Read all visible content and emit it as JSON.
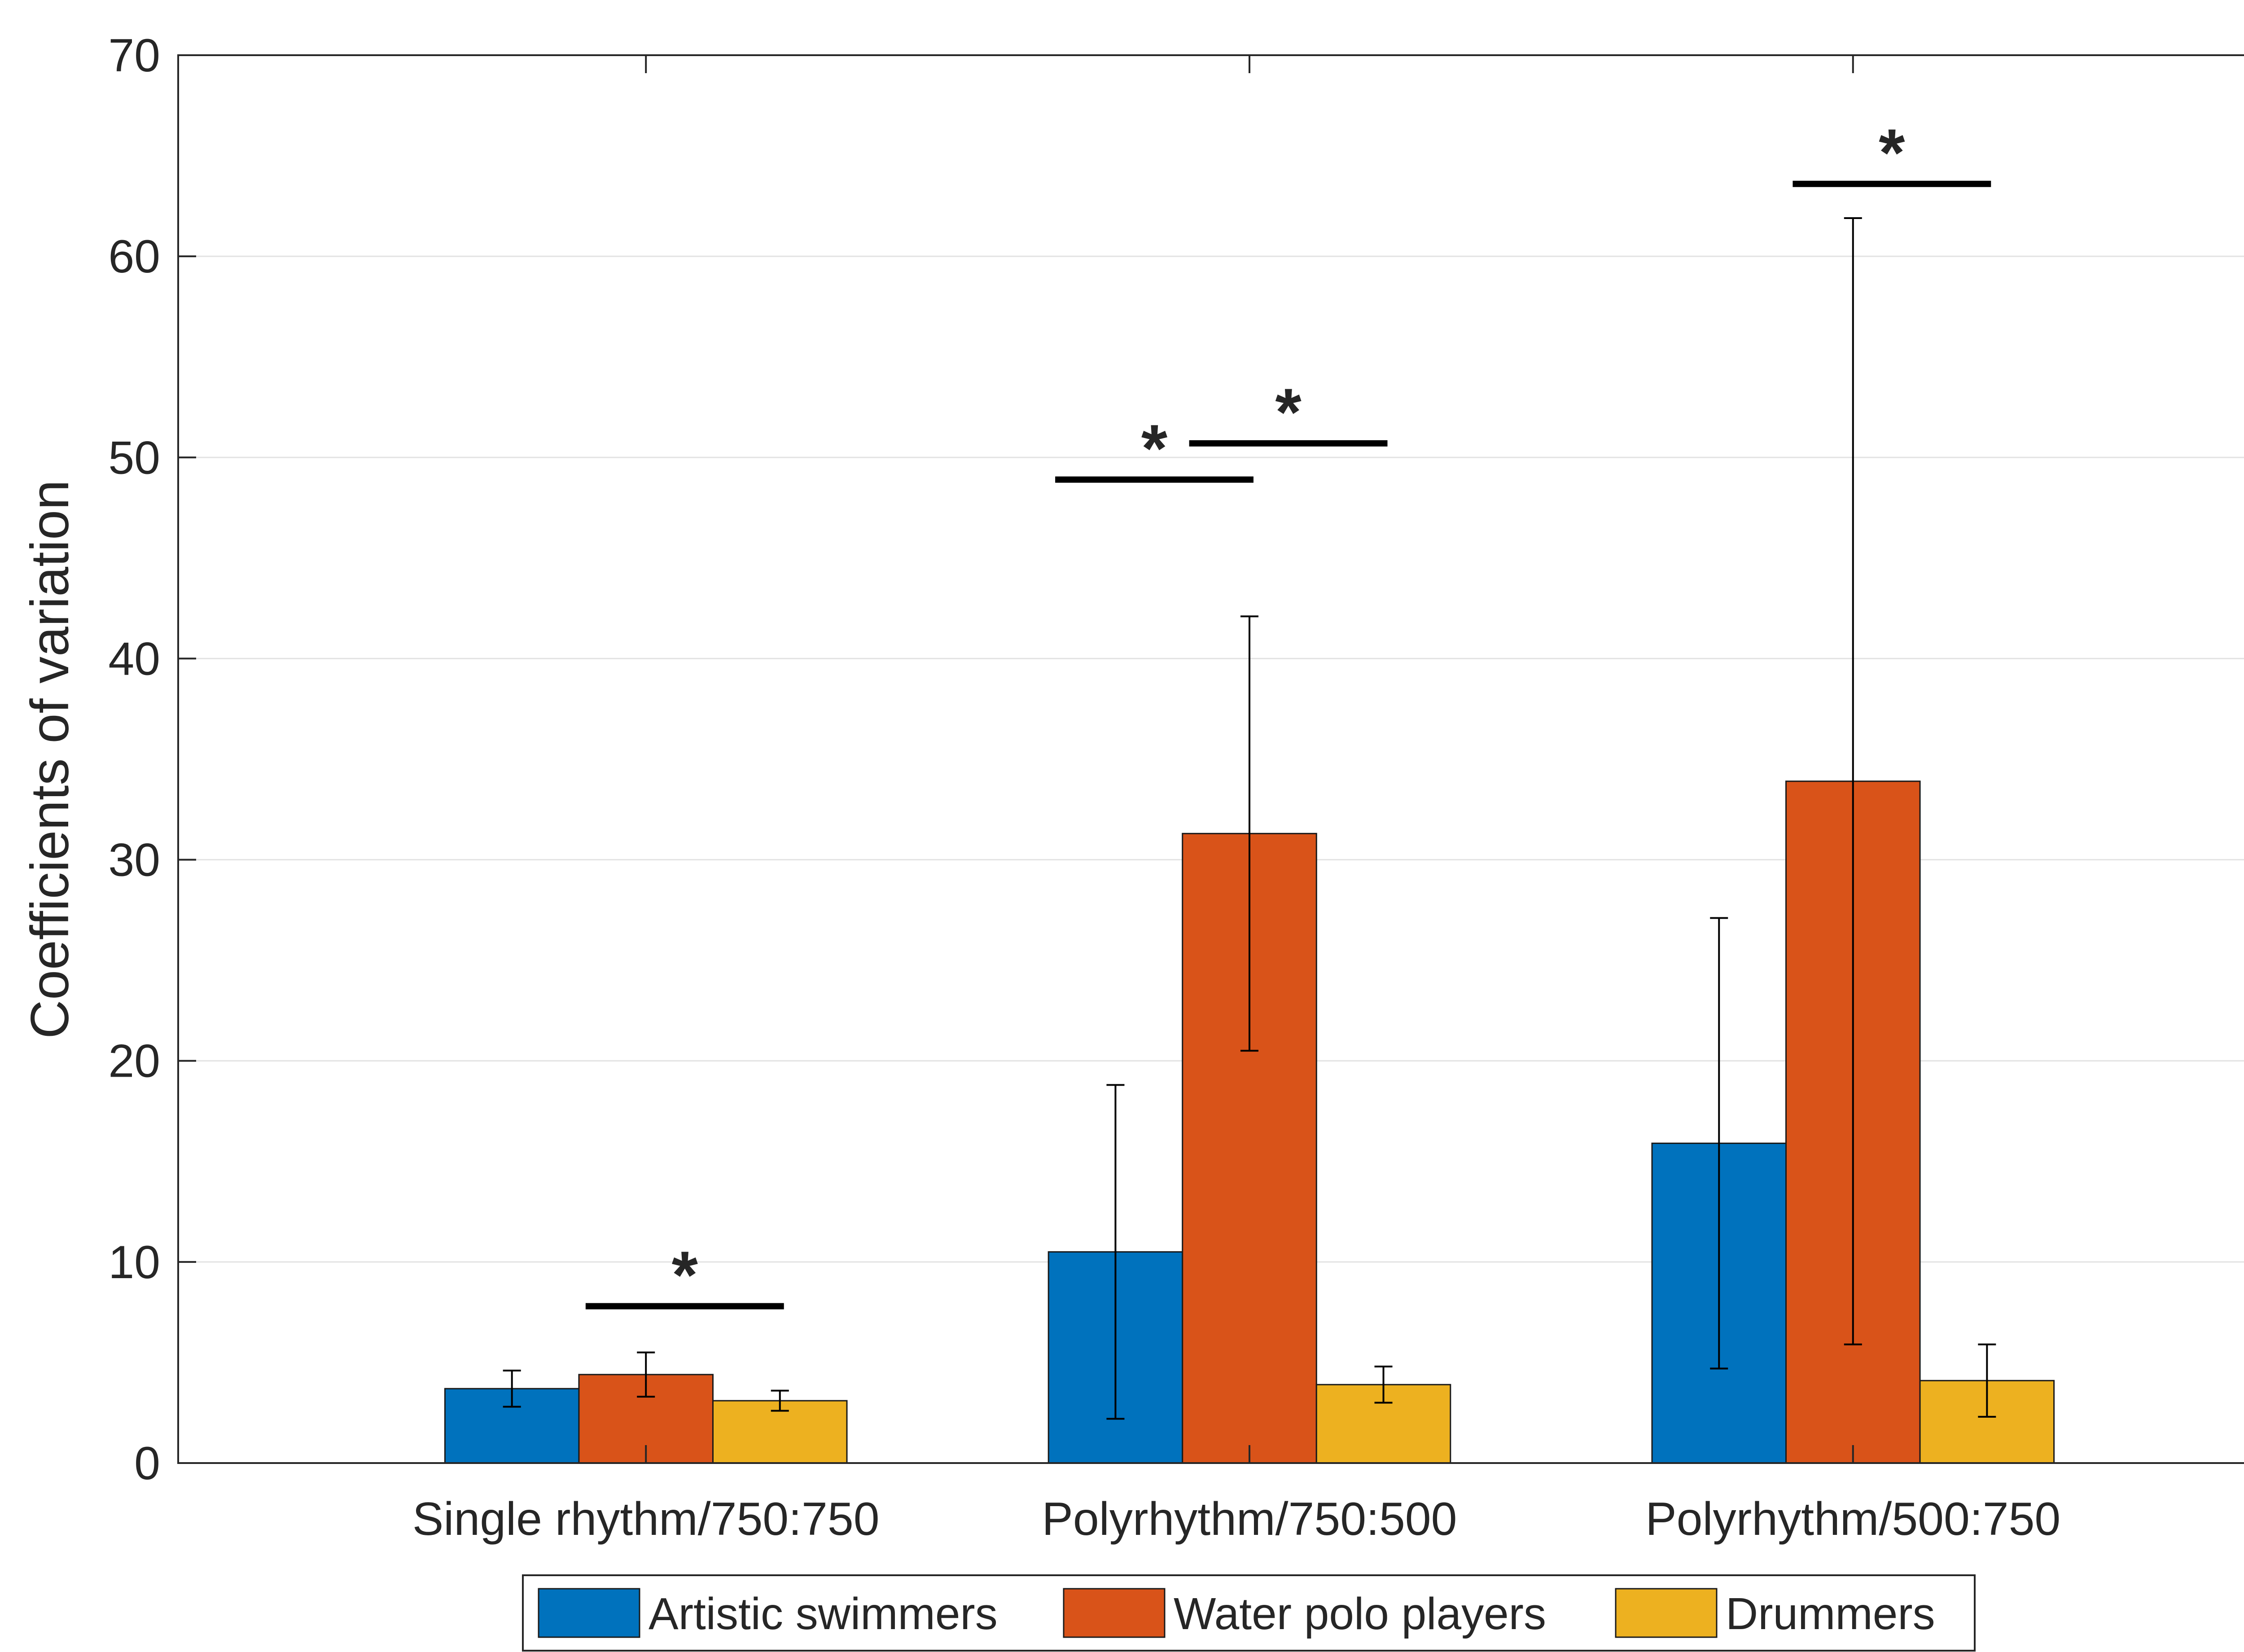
{
  "chart_data": {
    "type": "bar",
    "title": "",
    "xlabel": "",
    "ylabel": "Coefficients of variation",
    "ylim": [
      0,
      70
    ],
    "yticks": [
      0,
      10,
      20,
      30,
      40,
      50,
      60,
      70
    ],
    "grid": "horizontal",
    "legend_position": "bottom",
    "categories": [
      "Single rhythm/750:750",
      "Polyrhythm/750:500",
      "Polyrhythm/500:750"
    ],
    "series": [
      {
        "name": "Artistic swimmers",
        "color": "#0072BD",
        "values": [
          3.7,
          10.5,
          15.9
        ],
        "error_low": [
          2.8,
          2.2,
          4.7
        ],
        "error_high": [
          4.6,
          18.8,
          27.1
        ]
      },
      {
        "name": "Water polo players",
        "color": "#D95319",
        "values": [
          4.4,
          31.3,
          33.9
        ],
        "error_low": [
          3.3,
          20.5,
          5.9
        ],
        "error_high": [
          5.5,
          42.1,
          61.9
        ]
      },
      {
        "name": "Drummers",
        "color": "#EDB120",
        "values": [
          3.1,
          3.9,
          4.1
        ],
        "error_low": [
          2.6,
          3.0,
          2.3
        ],
        "error_high": [
          3.6,
          4.8,
          5.9
        ]
      }
    ],
    "significance": [
      {
        "category": 0,
        "from_series": 1,
        "to_series": 2,
        "y": 7.8,
        "label": "*"
      },
      {
        "category": 1,
        "from_series": 0,
        "to_series": 1,
        "y": 48.9,
        "label": "*"
      },
      {
        "category": 1,
        "from_series": 1,
        "to_series": 2,
        "y": 50.7,
        "label": "*"
      },
      {
        "category": 2,
        "from_series": 1,
        "to_series": 2,
        "y": 63.6,
        "label": "*"
      }
    ]
  }
}
